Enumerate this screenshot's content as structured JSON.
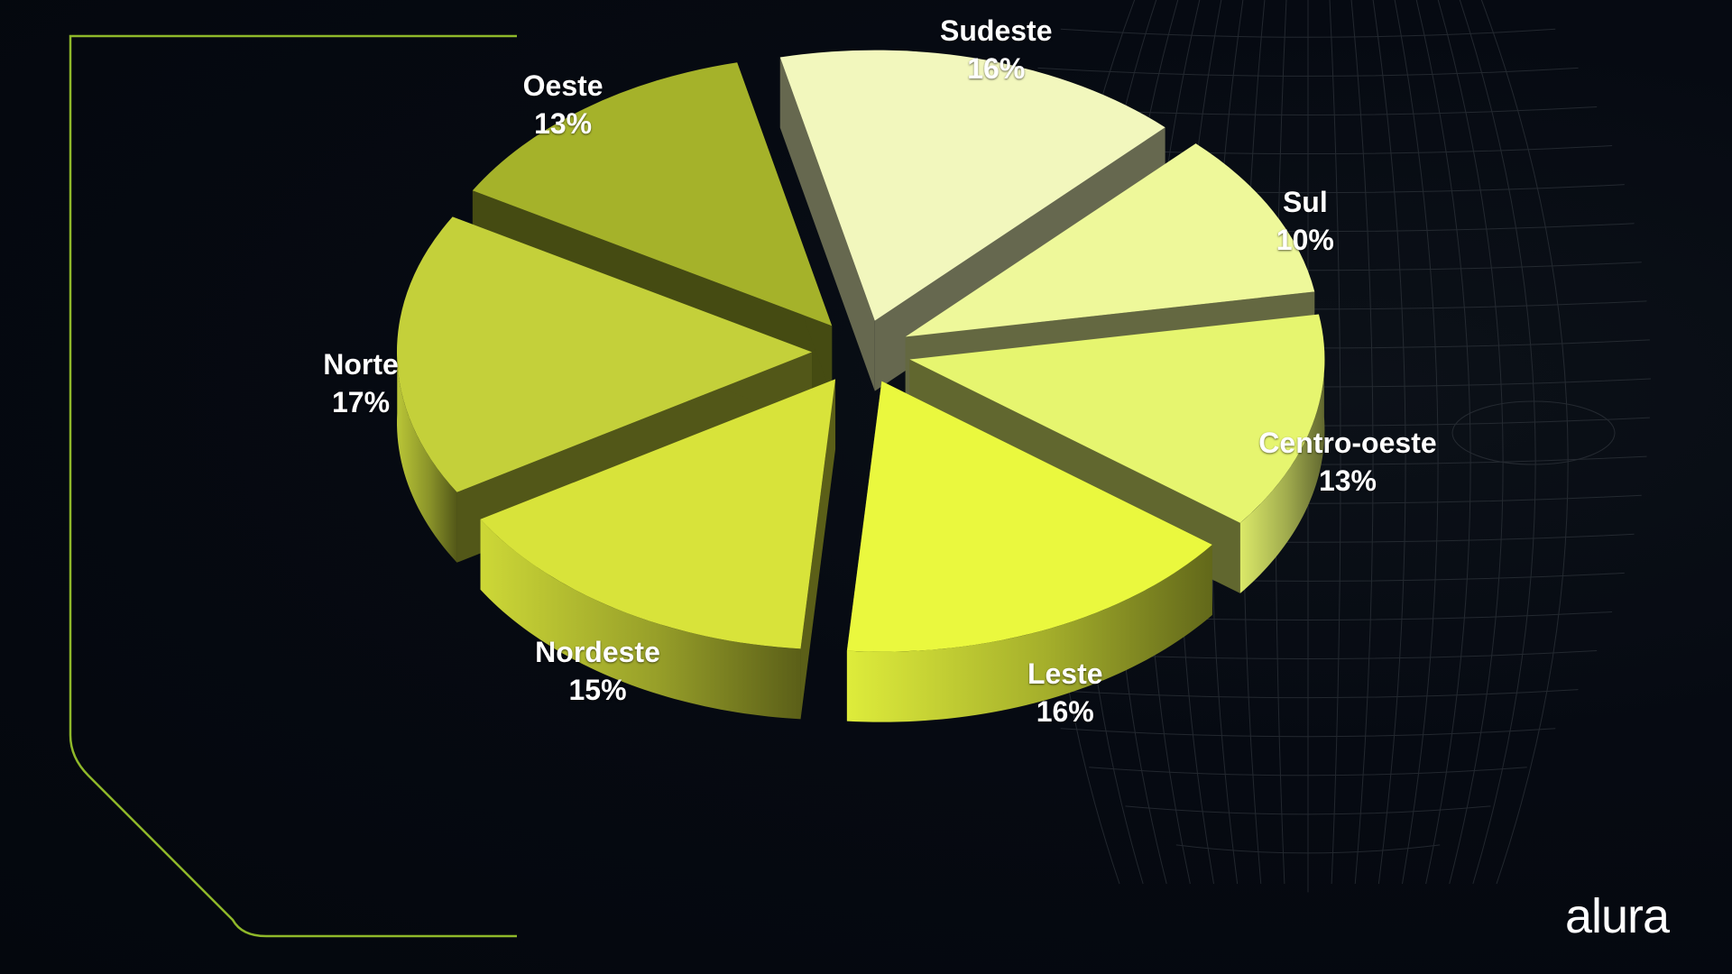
{
  "brand": {
    "logo_text": "alura",
    "accent_color": "#8fb82a"
  },
  "chart_data": {
    "type": "pie",
    "title": "",
    "exploded": true,
    "three_d": true,
    "slices": [
      {
        "label": "Oeste",
        "value": 13,
        "value_label": "13%",
        "color": "#a5b22a"
      },
      {
        "label": "Sudeste",
        "value": 16,
        "value_label": "16%",
        "color": "#f2f7bd"
      },
      {
        "label": "Sul",
        "value": 10,
        "value_label": "10%",
        "color": "#eef89a"
      },
      {
        "label": "Centro-oeste",
        "value": 13,
        "value_label": "13%",
        "color": "#e6f56f"
      },
      {
        "label": "Leste",
        "value": 16,
        "value_label": "16%",
        "color": "#eaf83e"
      },
      {
        "label": "Nordeste",
        "value": 15,
        "value_label": "15%",
        "color": "#d8e33a"
      },
      {
        "label": "Norte",
        "value": 17,
        "value_label": "17%",
        "color": "#c4d03a"
      }
    ]
  }
}
